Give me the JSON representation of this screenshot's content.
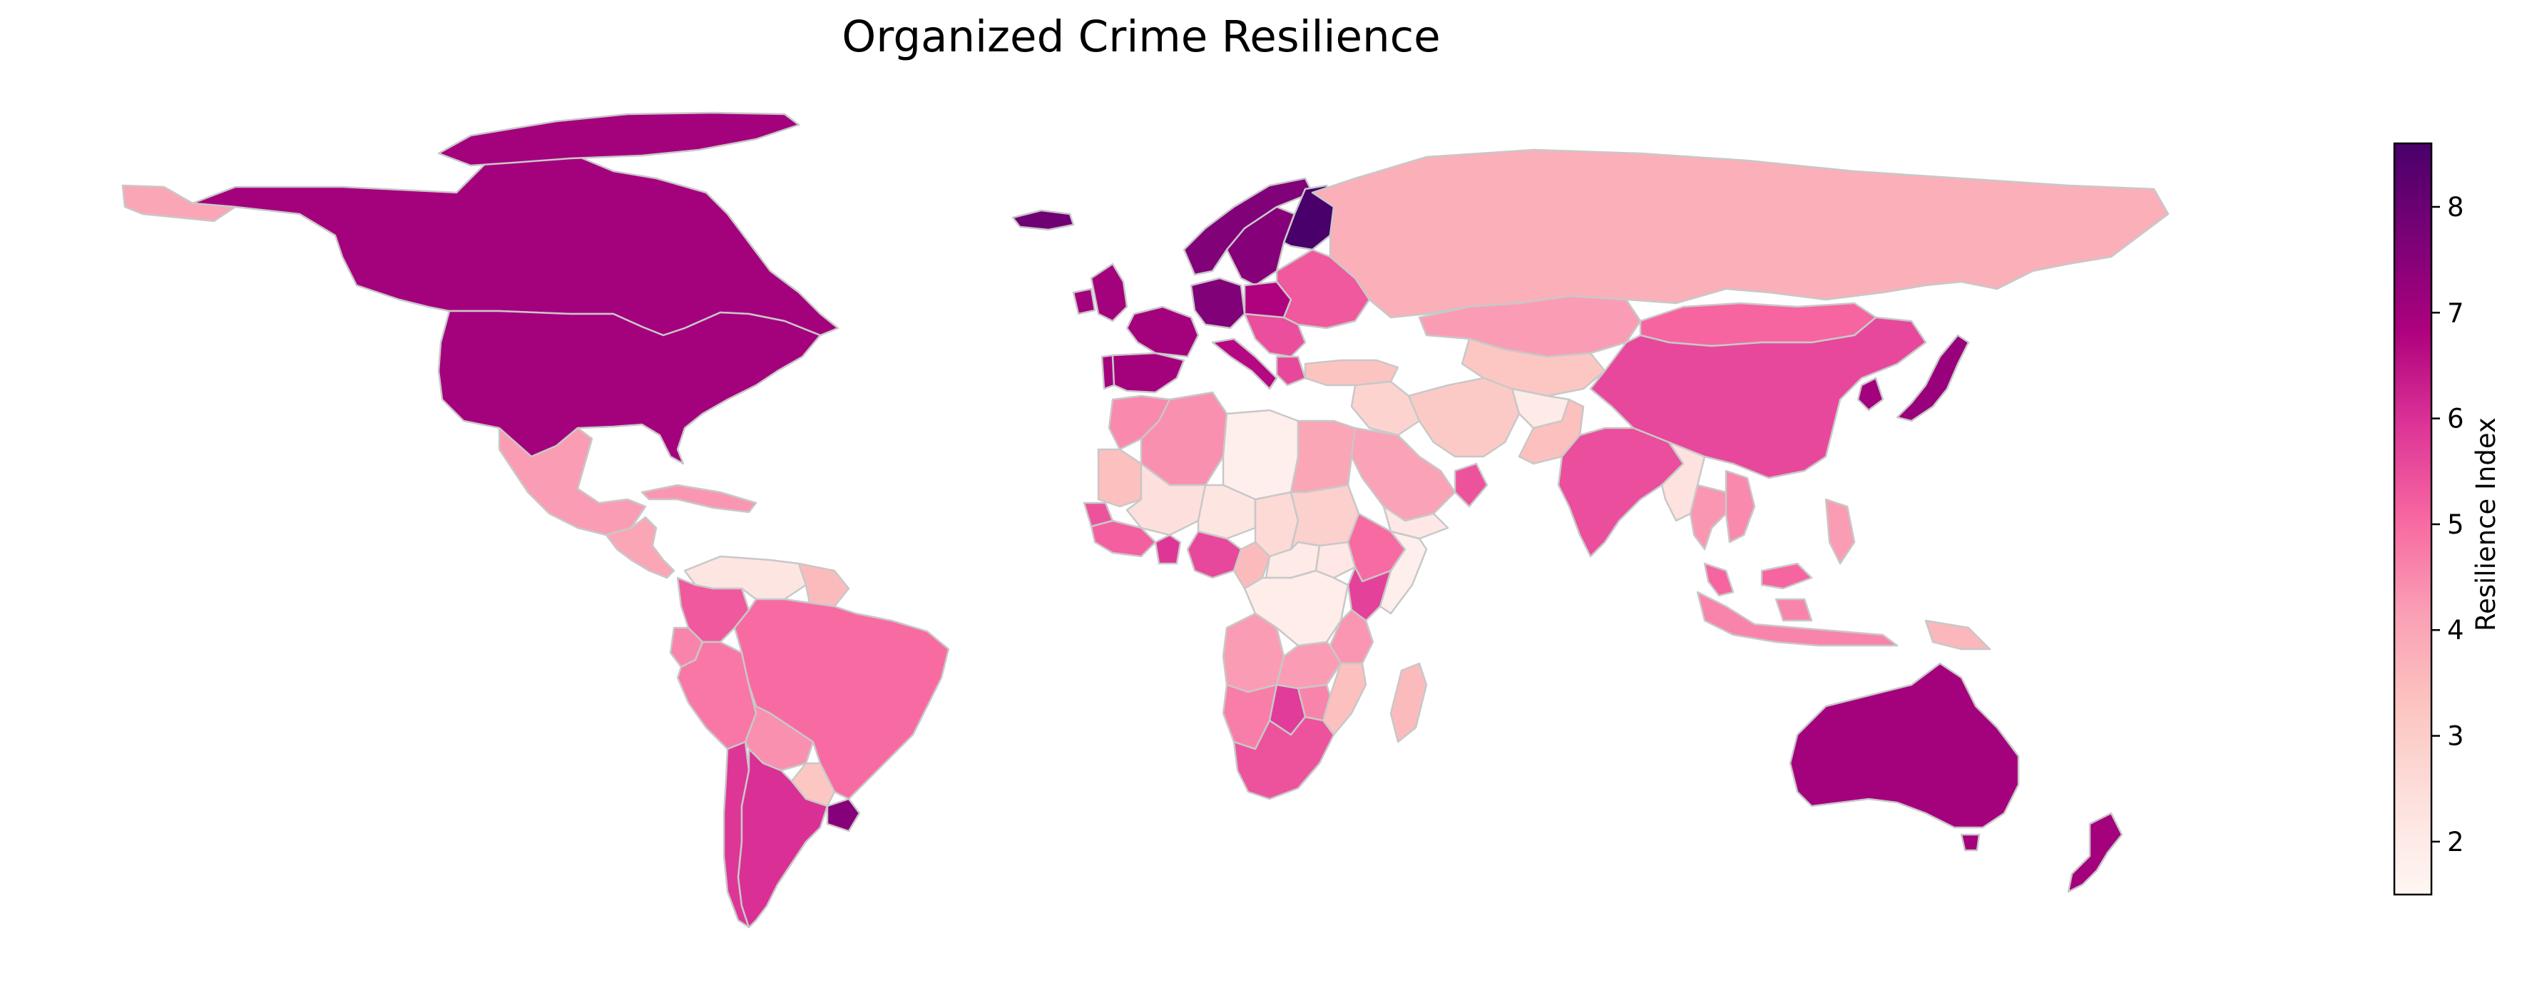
{
  "title": "Organized Crime Resilience",
  "colorbar": {
    "label": "Resilience Index",
    "ticks": [
      2,
      3,
      4,
      5,
      6,
      7,
      8
    ],
    "min": 1.5,
    "max": 8.6,
    "colors": [
      "#fff7f3",
      "#fde0dd",
      "#fcc5c0",
      "#fa9fb5",
      "#f768a1",
      "#dd3497",
      "#ae017e",
      "#7a0177",
      "#49006a"
    ]
  },
  "legend_placement": "right",
  "border_color": "#c8c8c8",
  "regions": [
    {
      "name": "Canada",
      "value": 7.0
    },
    {
      "name": "United States",
      "value": 7.0
    },
    {
      "name": "Greenland",
      "value": 7.0
    },
    {
      "name": "Alaska",
      "value": 4.0
    },
    {
      "name": "Mexico",
      "value": 4.2
    },
    {
      "name": "Central America",
      "value": 4.0
    },
    {
      "name": "Caribbean",
      "value": 4.3
    },
    {
      "name": "Venezuela",
      "value": 2.2
    },
    {
      "name": "Guyana",
      "value": 3.5
    },
    {
      "name": "Colombia",
      "value": 5.3
    },
    {
      "name": "Ecuador",
      "value": 4.6
    },
    {
      "name": "Peru",
      "value": 4.8
    },
    {
      "name": "Brazil",
      "value": 5.0
    },
    {
      "name": "Bolivia",
      "value": 4.4
    },
    {
      "name": "Paraguay",
      "value": 3.2
    },
    {
      "name": "Chile",
      "value": 5.9
    },
    {
      "name": "Argentina",
      "value": 6.0
    },
    {
      "name": "Uruguay",
      "value": 7.5
    },
    {
      "name": "Iceland",
      "value": 7.9
    },
    {
      "name": "United Kingdom",
      "value": 7.0
    },
    {
      "name": "Ireland",
      "value": 7.0
    },
    {
      "name": "Spain",
      "value": 7.0
    },
    {
      "name": "Portugal",
      "value": 7.0
    },
    {
      "name": "France",
      "value": 7.0
    },
    {
      "name": "Germany",
      "value": 7.6
    },
    {
      "name": "Norway",
      "value": 7.6
    },
    {
      "name": "Sweden",
      "value": 7.5
    },
    {
      "name": "Finland",
      "value": 8.6
    },
    {
      "name": "Italy",
      "value": 6.7
    },
    {
      "name": "Poland",
      "value": 6.8
    },
    {
      "name": "Eastern Europe",
      "value": 5.3
    },
    {
      "name": "Balkans",
      "value": 5.5
    },
    {
      "name": "Greece",
      "value": 5.6
    },
    {
      "name": "Turkey",
      "value": 3.3
    },
    {
      "name": "Russia",
      "value": 3.8
    },
    {
      "name": "Kazakhstan",
      "value": 4.2
    },
    {
      "name": "Central Asia",
      "value": 3.2
    },
    {
      "name": "Mongolia",
      "value": 5.1
    },
    {
      "name": "China",
      "value": 5.6
    },
    {
      "name": "Japan",
      "value": 7.2
    },
    {
      "name": "South Korea",
      "value": 7.0
    },
    {
      "name": "Iran",
      "value": 3.1
    },
    {
      "name": "Afghanistan",
      "value": 2.0
    },
    {
      "name": "Pakistan",
      "value": 3.4
    },
    {
      "name": "Saudi Arabia",
      "value": 4.1
    },
    {
      "name": "Iraq and Syria",
      "value": 2.8
    },
    {
      "name": "Oman",
      "value": 5.4
    },
    {
      "name": "Yemen",
      "value": 2.1
    },
    {
      "name": "India",
      "value": 5.5
    },
    {
      "name": "Myanmar",
      "value": 2.3
    },
    {
      "name": "Thailand",
      "value": 4.3
    },
    {
      "name": "Vietnam",
      "value": 4.5
    },
    {
      "name": "Malaysia",
      "value": 5.1
    },
    {
      "name": "Indonesia",
      "value": 4.6
    },
    {
      "name": "Philippines",
      "value": 4.2
    },
    {
      "name": "Papua New Guinea",
      "value": 3.6
    },
    {
      "name": "Australia",
      "value": 7.0
    },
    {
      "name": "New Zealand",
      "value": 7.0
    },
    {
      "name": "Morocco",
      "value": 4.5
    },
    {
      "name": "Algeria",
      "value": 4.4
    },
    {
      "name": "Libya",
      "value": 1.8
    },
    {
      "name": "Egypt",
      "value": 4.0
    },
    {
      "name": "Mauritania",
      "value": 3.4
    },
    {
      "name": "Mali",
      "value": 2.4
    },
    {
      "name": "Niger",
      "value": 2.2
    },
    {
      "name": "Chad",
      "value": 2.6
    },
    {
      "name": "Sudan",
      "value": 2.9
    },
    {
      "name": "Senegal",
      "value": 5.4
    },
    {
      "name": "West Africa Coast",
      "value": 5.2
    },
    {
      "name": "Ghana",
      "value": 5.9
    },
    {
      "name": "Nigeria",
      "value": 5.6
    },
    {
      "name": "Cameroon",
      "value": 3.5
    },
    {
      "name": "Central African Republic",
      "value": 2.0
    },
    {
      "name": "South Sudan",
      "value": 2.1
    },
    {
      "name": "Ethiopia",
      "value": 5.0
    },
    {
      "name": "Somalia",
      "value": 1.8
    },
    {
      "name": "Kenya",
      "value": 5.7
    },
    {
      "name": "DR Congo",
      "value": 1.9
    },
    {
      "name": "Tanzania",
      "value": 4.3
    },
    {
      "name": "Angola",
      "value": 4.2
    },
    {
      "name": "Zambia",
      "value": 4.2
    },
    {
      "name": "Mozambique",
      "value": 3.4
    },
    {
      "name": "Namibia",
      "value": 4.7
    },
    {
      "name": "Botswana",
      "value": 5.8
    },
    {
      "name": "Zimbabwe",
      "value": 4.6
    },
    {
      "name": "South Africa",
      "value": 5.4
    },
    {
      "name": "Madagascar",
      "value": 3.5
    }
  ]
}
